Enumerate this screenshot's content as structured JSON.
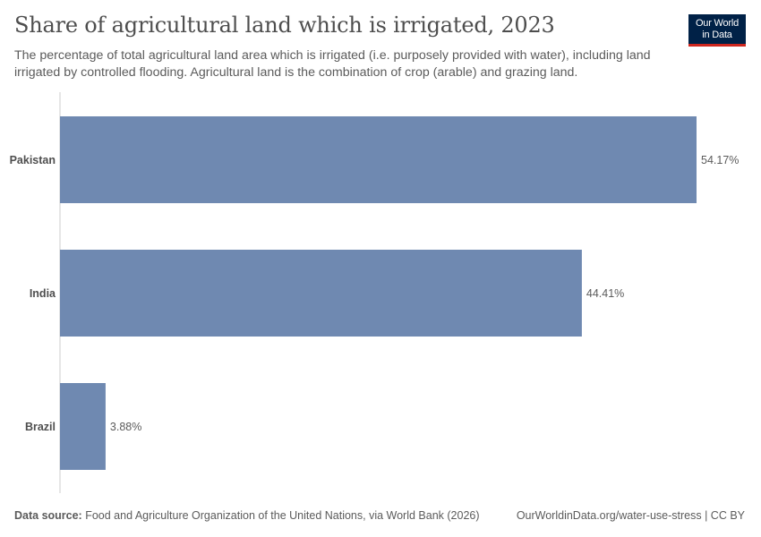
{
  "title": "Share of agricultural land which is irrigated, 2023",
  "subtitle": "The percentage of total agricultural land area which is irrigated (i.e. purposely provided with water), including land irrigated by controlled flooding. Agricultural land is the combination of crop (arable) and grazing land.",
  "logo": {
    "line1": "Our World",
    "line2": "in Data"
  },
  "footer": {
    "source_label": "Data source:",
    "source_text": "Food and Agriculture Organization of the United Nations, via World Bank (2026)",
    "url": "OurWorldinData.org/water-use-stress | CC BY"
  },
  "colors": {
    "bar": "#6f89b1",
    "axis": "#cccccc",
    "logo_bg": "#002147",
    "logo_accent": "#ce261e"
  },
  "chart_data": {
    "type": "bar",
    "orientation": "horizontal",
    "categories": [
      "Pakistan",
      "India",
      "Brazil"
    ],
    "values": [
      54.17,
      44.41,
      3.88
    ],
    "value_labels": [
      "54.17%",
      "44.41%",
      "3.88%"
    ],
    "unit": "%",
    "xlim": [
      0,
      54.17
    ],
    "grid": false,
    "legend": "none"
  }
}
